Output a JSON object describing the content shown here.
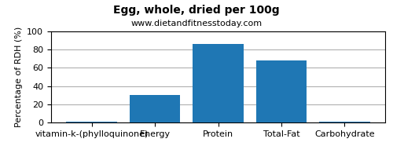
{
  "chart_data": {
    "type": "bar",
    "title": "Egg, whole, dried per 100g",
    "subtitle": "www.dietandfitnesstoday.com",
    "categories": [
      "vitamin-k-(phylloquinone)",
      "Energy",
      "Protein",
      "Total-Fat",
      "Carbohydrate"
    ],
    "values": [
      0.5,
      30,
      86,
      68,
      1
    ],
    "ylabel": "Percentage of RDH (%)",
    "ylim": [
      0,
      100
    ],
    "yticks": [
      0,
      20,
      40,
      60,
      80,
      100
    ],
    "grid": true
  }
}
